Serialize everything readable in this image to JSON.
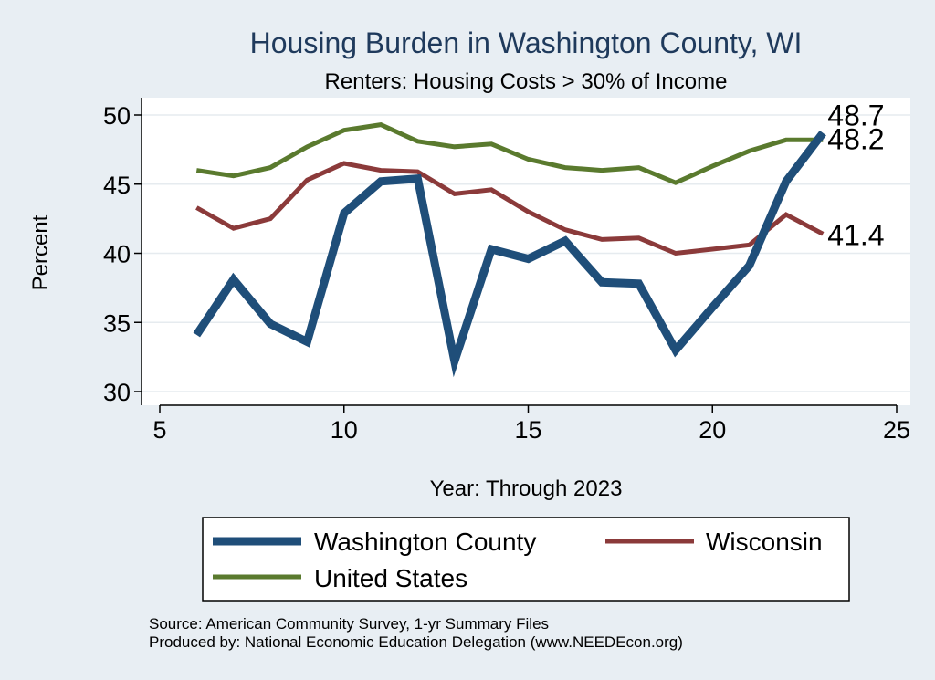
{
  "chart_data": {
    "type": "line",
    "title": "Housing Burden in Washington County, WI",
    "subtitle": "Renters: Housing Costs > 30% of Income",
    "xlabel": "Year: Through 2023",
    "ylabel": "Percent",
    "xlim": [
      5,
      25
    ],
    "ylim": [
      30,
      50
    ],
    "xticks": [
      5,
      10,
      15,
      20,
      25
    ],
    "yticks": [
      30,
      35,
      40,
      45,
      50
    ],
    "grid": true,
    "legend_position": "bottom",
    "series": [
      {
        "name": "Washington County",
        "key": "washington",
        "color": "#1f4e79",
        "x": [
          6,
          7,
          8,
          9,
          10,
          11,
          12,
          13,
          14,
          15,
          16,
          17,
          18,
          19,
          20,
          21,
          22,
          23
        ],
        "values": [
          34.1,
          38.1,
          34.9,
          33.6,
          42.9,
          45.2,
          45.4,
          32.2,
          40.3,
          39.6,
          40.9,
          37.9,
          37.8,
          33.0,
          36.1,
          39.1,
          45.2,
          48.7
        ],
        "end_label": "48.7"
      },
      {
        "name": "Wisconsin",
        "key": "wisconsin",
        "color": "#8b3a3a",
        "x": [
          6,
          7,
          8,
          9,
          10,
          11,
          12,
          13,
          14,
          15,
          16,
          17,
          18,
          19,
          20,
          21,
          22,
          23
        ],
        "values": [
          43.3,
          41.8,
          42.5,
          45.3,
          46.5,
          46.0,
          45.9,
          44.3,
          44.6,
          43.0,
          41.7,
          41.0,
          41.1,
          40.0,
          40.3,
          40.6,
          42.8,
          41.4
        ],
        "end_label": "41.4"
      },
      {
        "name": "United States",
        "key": "us",
        "color": "#5a7a2e",
        "x": [
          6,
          7,
          8,
          9,
          10,
          11,
          12,
          13,
          14,
          15,
          16,
          17,
          18,
          19,
          20,
          21,
          22,
          23
        ],
        "values": [
          46.0,
          45.6,
          46.2,
          47.7,
          48.9,
          49.3,
          48.1,
          47.7,
          47.9,
          46.8,
          46.2,
          46.0,
          46.2,
          45.1,
          46.3,
          47.4,
          48.2,
          48.2
        ],
        "end_label": "48.2"
      }
    ]
  },
  "notes": {
    "source": "Source: American Community Survey, 1-yr Summary Files",
    "producer": "Produced by: National Economic Education Delegation (www.NEEDEcon.org)"
  }
}
